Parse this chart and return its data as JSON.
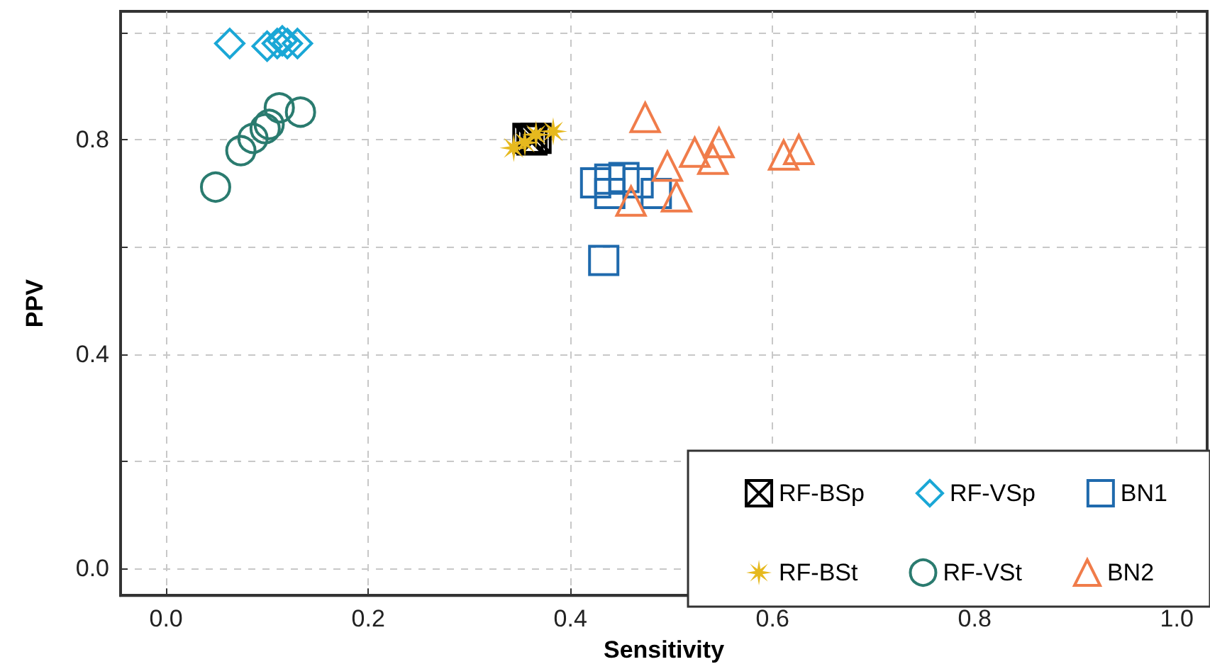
{
  "chart_data": {
    "type": "scatter",
    "xlabel": "Sensitivity",
    "ylabel": "PPV",
    "xlim": [
      -0.045,
      1.03
    ],
    "ylim": [
      -0.05,
      1.04
    ],
    "xticks": [
      {
        "value": 0,
        "label": "0.0"
      },
      {
        "value": 0.2,
        "label": "0.2"
      },
      {
        "value": 0.4,
        "label": "0.4"
      },
      {
        "value": 0.6,
        "label": "0.6"
      },
      {
        "value": 0.8,
        "label": "0.8"
      },
      {
        "value": 1,
        "label": "1.0"
      }
    ],
    "yticks": [
      {
        "value": 0,
        "label": "0.0"
      },
      {
        "value": 0.2,
        "label": null
      },
      {
        "value": 0.4,
        "label": "0.4"
      },
      {
        "value": 0.6,
        "label": null
      },
      {
        "value": 0.8,
        "label": "0.8"
      },
      {
        "value": 1,
        "label": null
      }
    ],
    "grid": true,
    "legend": "bottom right",
    "series": [
      {
        "name": "RF-BSp",
        "color": "#000000",
        "marker": "cross",
        "x": [
          0.358,
          0.366,
          0.362
        ],
        "values": [
          0.803,
          0.803,
          0.8
        ]
      },
      {
        "name": "RF-VSp",
        "color": "#1aa7d6",
        "marker": "diamond",
        "x": [
          0.063,
          0.1,
          0.11,
          0.115,
          0.12,
          0.13
        ],
        "values": [
          0.98,
          0.975,
          0.98,
          0.985,
          0.98,
          0.98
        ]
      },
      {
        "name": "BN1",
        "color": "#1f6aad",
        "marker": "square",
        "x": [
          0.425,
          0.439,
          0.453,
          0.467,
          0.485,
          0.439,
          0.433
        ],
        "values": [
          0.72,
          0.727,
          0.73,
          0.72,
          0.7,
          0.7,
          0.575
        ]
      },
      {
        "name": "RF-BSt",
        "color": "#e6b91e",
        "marker": "star",
        "x": [
          0.344,
          0.355,
          0.366,
          0.383
        ],
        "values": [
          0.785,
          0.795,
          0.81,
          0.816
        ]
      },
      {
        "name": "RF-VSt",
        "color": "#2a7b6f",
        "marker": "circle",
        "x": [
          0.049,
          0.074,
          0.086,
          0.098,
          0.102,
          0.112,
          0.133
        ],
        "values": [
          0.712,
          0.78,
          0.803,
          0.821,
          0.829,
          0.86,
          0.852
        ]
      },
      {
        "name": "BN2",
        "color": "#f07c4a",
        "marker": "triangle",
        "x": [
          0.474,
          0.46,
          0.496,
          0.505,
          0.523,
          0.541,
          0.547,
          0.611,
          0.626
        ],
        "values": [
          0.842,
          0.686,
          0.751,
          0.694,
          0.777,
          0.764,
          0.795,
          0.772,
          0.782
        ]
      }
    ]
  }
}
